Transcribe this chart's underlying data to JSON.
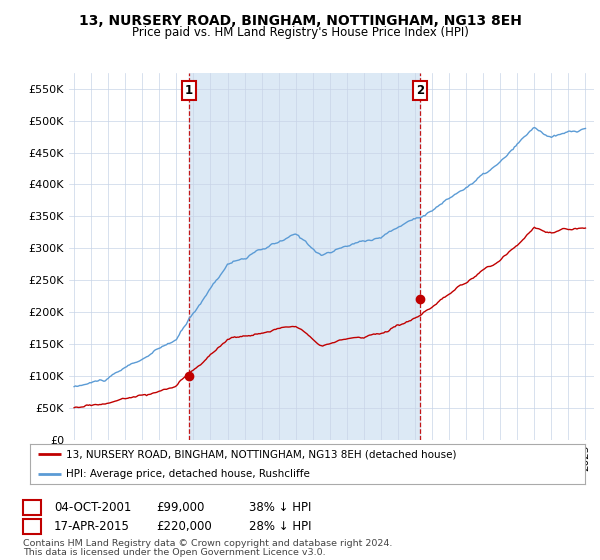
{
  "title": "13, NURSERY ROAD, BINGHAM, NOTTINGHAM, NG13 8EH",
  "subtitle": "Price paid vs. HM Land Registry's House Price Index (HPI)",
  "yticks": [
    0,
    50000,
    100000,
    150000,
    200000,
    250000,
    300000,
    350000,
    400000,
    450000,
    500000,
    550000
  ],
  "xlim_start": 1994.7,
  "xlim_end": 2025.5,
  "ylim": [
    0,
    575000
  ],
  "transaction1": {
    "date": "04-OCT-2001",
    "price": 99000,
    "label": "1",
    "year": 2001.75
  },
  "transaction2": {
    "date": "17-APR-2015",
    "price": 220000,
    "label": "2",
    "year": 2015.29
  },
  "legend_entry1": "13, NURSERY ROAD, BINGHAM, NOTTINGHAM, NG13 8EH (detached house)",
  "legend_entry2": "HPI: Average price, detached house, Rushcliffe",
  "footer1": "Contains HM Land Registry data © Crown copyright and database right 2024.",
  "footer2": "This data is licensed under the Open Government Licence v3.0.",
  "hpi_color": "#5b9bd5",
  "price_color": "#c00000",
  "dashed_line_color": "#c00000",
  "shade_color": "#dce9f5",
  "background_color": "#ffffff",
  "grid_color": "#c8d4e8"
}
